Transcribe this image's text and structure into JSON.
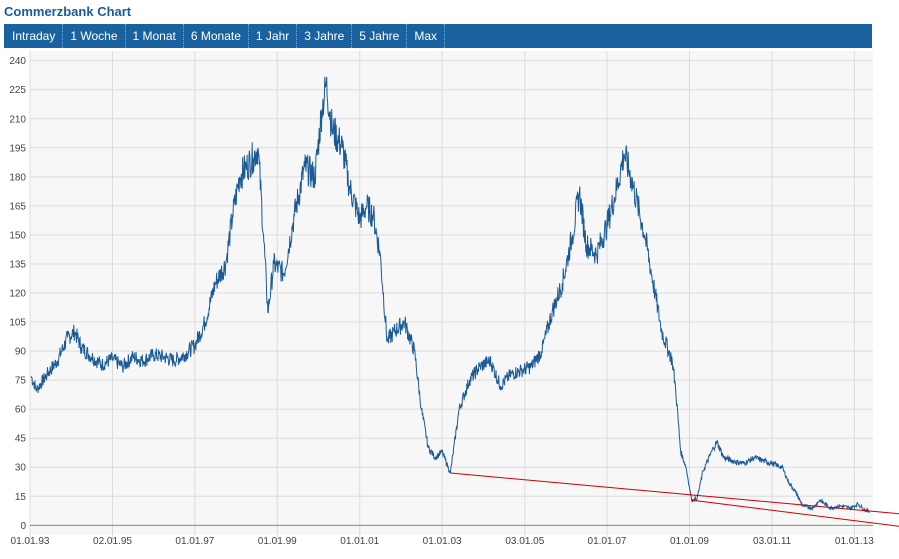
{
  "header": {
    "title": "Commerzbank Chart"
  },
  "tabs": [
    {
      "label": "Intraday"
    },
    {
      "label": "1 Woche"
    },
    {
      "label": "1 Monat"
    },
    {
      "label": "6 Monate"
    },
    {
      "label": "1 Jahr"
    },
    {
      "label": "3 Jahre"
    },
    {
      "label": "5 Jahre"
    },
    {
      "label": "Max"
    }
  ],
  "chart_data": {
    "type": "line",
    "title": "",
    "xlabel": "",
    "ylabel": "",
    "ylim": [
      -5,
      245
    ],
    "xlim": [
      "1993-01-01",
      "2013-06-15"
    ],
    "grid": true,
    "y_ticks": [
      0,
      15,
      30,
      45,
      60,
      75,
      90,
      105,
      120,
      135,
      150,
      165,
      180,
      195,
      210,
      225,
      240
    ],
    "x_ticks": [
      {
        "label": "01.01.93",
        "date": "1993-01-01"
      },
      {
        "label": "02.01.95",
        "date": "1995-01-02"
      },
      {
        "label": "01.01.97",
        "date": "1997-01-01"
      },
      {
        "label": "01.01.99",
        "date": "1999-01-01"
      },
      {
        "label": "01.01.01",
        "date": "2001-01-01"
      },
      {
        "label": "01.01.03",
        "date": "2003-01-01"
      },
      {
        "label": "03.01.05",
        "date": "2005-01-03"
      },
      {
        "label": "01.01.07",
        "date": "2007-01-01"
      },
      {
        "label": "01.01.09",
        "date": "2009-01-01"
      },
      {
        "label": "03.01.11",
        "date": "2011-01-03"
      },
      {
        "label": "01.01.13",
        "date": "2013-01-01"
      }
    ],
    "series": [
      {
        "color": "#1a5a96",
        "points": [
          [
            "1993-01-10",
            77
          ],
          [
            "1993-03-01",
            70
          ],
          [
            "1993-06-01",
            78
          ],
          [
            "1993-09-01",
            85
          ],
          [
            "1993-12-01",
            97
          ],
          [
            "1994-02-01",
            100
          ],
          [
            "1994-04-01",
            92
          ],
          [
            "1994-07-01",
            87
          ],
          [
            "1994-10-01",
            83
          ],
          [
            "1995-01-01",
            86
          ],
          [
            "1995-04-01",
            82
          ],
          [
            "1995-07-01",
            87
          ],
          [
            "1995-10-01",
            85
          ],
          [
            "1996-01-01",
            88
          ],
          [
            "1996-04-01",
            87
          ],
          [
            "1996-07-01",
            85
          ],
          [
            "1996-10-01",
            88
          ],
          [
            "1997-01-01",
            93
          ],
          [
            "1997-04-01",
            105
          ],
          [
            "1997-07-01",
            125
          ],
          [
            "1997-10-01",
            135
          ],
          [
            "1997-12-01",
            160
          ],
          [
            "1998-02-01",
            180
          ],
          [
            "1998-04-01",
            185
          ],
          [
            "1998-06-01",
            190
          ],
          [
            "1998-07-15",
            195
          ],
          [
            "1998-09-01",
            150
          ],
          [
            "1998-10-10",
            110
          ],
          [
            "1998-12-01",
            135
          ],
          [
            "1999-03-01",
            130
          ],
          [
            "1999-06-01",
            160
          ],
          [
            "1999-09-01",
            185
          ],
          [
            "1999-12-01",
            180
          ],
          [
            "2000-02-01",
            215
          ],
          [
            "2000-03-10",
            228
          ],
          [
            "2000-05-01",
            205
          ],
          [
            "2000-08-01",
            195
          ],
          [
            "2000-10-01",
            175
          ],
          [
            "2001-01-01",
            158
          ],
          [
            "2001-03-01",
            165
          ],
          [
            "2001-05-01",
            160
          ],
          [
            "2001-07-01",
            140
          ],
          [
            "2001-09-01",
            95
          ],
          [
            "2001-11-01",
            100
          ],
          [
            "2002-02-01",
            105
          ],
          [
            "2002-05-01",
            90
          ],
          [
            "2002-07-01",
            60
          ],
          [
            "2002-09-01",
            40
          ],
          [
            "2002-11-01",
            35
          ],
          [
            "2003-01-01",
            38
          ],
          [
            "2003-03-15",
            27
          ],
          [
            "2003-06-01",
            60
          ],
          [
            "2003-09-01",
            75
          ],
          [
            "2003-12-01",
            82
          ],
          [
            "2004-03-01",
            85
          ],
          [
            "2004-06-01",
            72
          ],
          [
            "2004-09-01",
            78
          ],
          [
            "2004-12-01",
            80
          ],
          [
            "2005-03-01",
            82
          ],
          [
            "2005-06-01",
            90
          ],
          [
            "2005-09-01",
            110
          ],
          [
            "2005-12-01",
            125
          ],
          [
            "2006-03-01",
            150
          ],
          [
            "2006-05-01",
            172
          ],
          [
            "2006-07-01",
            145
          ],
          [
            "2006-10-01",
            140
          ],
          [
            "2007-01-01",
            155
          ],
          [
            "2007-04-01",
            175
          ],
          [
            "2007-06-01",
            192
          ],
          [
            "2007-08-01",
            180
          ],
          [
            "2007-10-01",
            165
          ],
          [
            "2007-12-01",
            150
          ],
          [
            "2008-03-01",
            120
          ],
          [
            "2008-05-01",
            100
          ],
          [
            "2008-07-01",
            90
          ],
          [
            "2008-08-01",
            85
          ],
          [
            "2008-09-01",
            70
          ],
          [
            "2008-10-15",
            38
          ],
          [
            "2008-12-01",
            30
          ],
          [
            "2009-01-20",
            13
          ],
          [
            "2009-03-09",
            14
          ],
          [
            "2009-05-01",
            28
          ],
          [
            "2009-08-01",
            40
          ],
          [
            "2009-09-01",
            43
          ],
          [
            "2009-11-01",
            35
          ],
          [
            "2010-02-01",
            33
          ],
          [
            "2010-05-01",
            32
          ],
          [
            "2010-08-01",
            35
          ],
          [
            "2010-11-01",
            33
          ],
          [
            "2011-01-01",
            32
          ],
          [
            "2011-04-01",
            30
          ],
          [
            "2011-06-01",
            22
          ],
          [
            "2011-08-01",
            17
          ],
          [
            "2011-10-01",
            10
          ],
          [
            "2012-01-01",
            9
          ],
          [
            "2012-03-01",
            13
          ],
          [
            "2012-06-01",
            9
          ],
          [
            "2012-09-01",
            10
          ],
          [
            "2012-12-01",
            9
          ],
          [
            "2013-02-01",
            11
          ],
          [
            "2013-04-01",
            8
          ],
          [
            "2013-05-15",
            7
          ]
        ]
      }
    ],
    "trendlines": [
      {
        "color": "#cc0000",
        "from": [
          "2003-03-15",
          27
        ],
        "to": [
          "2013-06-15",
          6
        ]
      },
      {
        "color": "#cc0000",
        "from": [
          "2009-01-20",
          13
        ],
        "to": [
          "2013-06-15",
          -0.5
        ]
      }
    ]
  }
}
